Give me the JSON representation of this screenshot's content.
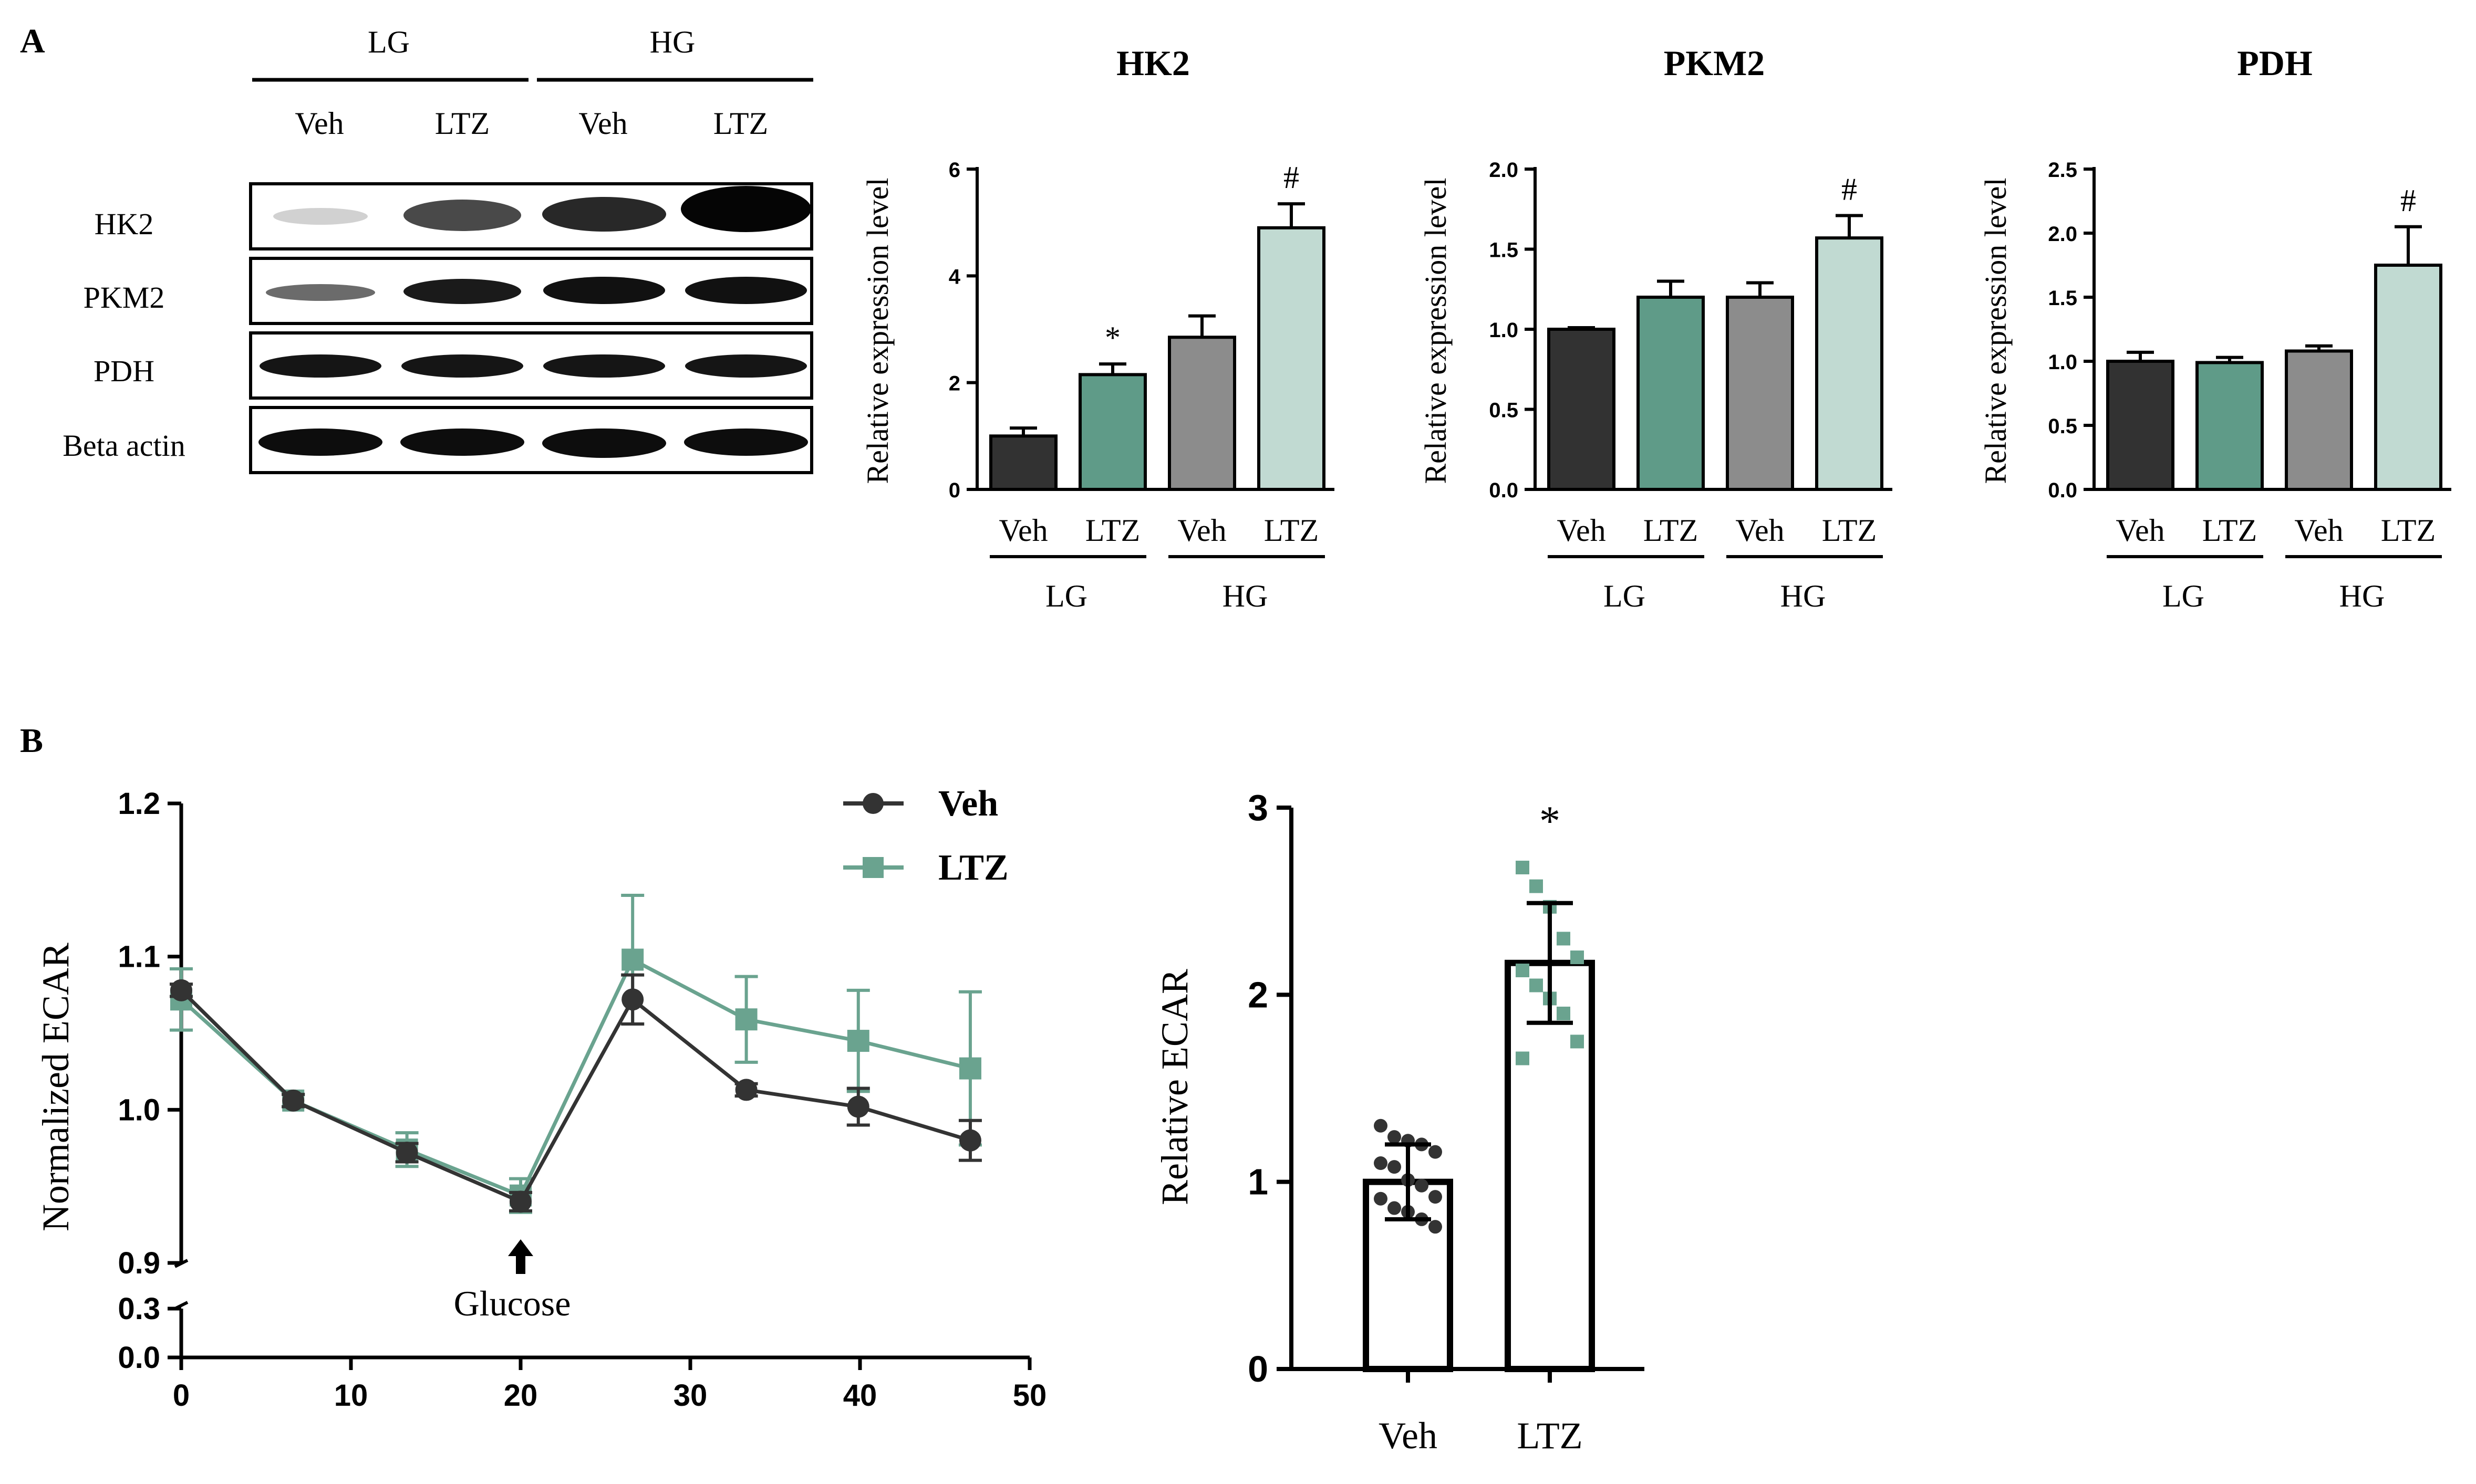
{
  "panel_labels": {
    "a": "A",
    "b": "B"
  },
  "colors": {
    "veh_lg": "#323232",
    "ltz_lg": "#5f9b88",
    "veh_hg": "#8c8c8c",
    "ltz_hg": "#c1dad2",
    "veh_line": "#333333",
    "ltz_line": "#6aa38f"
  },
  "blot": {
    "group_labels": [
      "LG",
      "HG"
    ],
    "lane_labels": [
      "Veh",
      "LTZ",
      "Veh",
      "LTZ"
    ],
    "row_labels": [
      "HK2",
      "PKM2",
      "PDH",
      "Beta actin"
    ]
  },
  "chart_data": [
    {
      "type": "bar",
      "title": "HK2",
      "ylabel": "Relative expression level",
      "categories": [
        "Veh",
        "LTZ",
        "Veh",
        "LTZ"
      ],
      "groups": [
        "LG",
        "HG"
      ],
      "values": [
        1.0,
        2.15,
        2.85,
        4.9
      ],
      "errors": [
        0.15,
        0.2,
        0.4,
        0.45
      ],
      "ylim": [
        0,
        6
      ],
      "yticks": [
        "0",
        "2",
        "4",
        "6"
      ],
      "yticks_values": [
        0,
        2,
        4,
        6
      ],
      "annotations": [
        "",
        "*",
        "",
        "#"
      ]
    },
    {
      "type": "bar",
      "title": "PKM2",
      "ylabel": "Relative expression level",
      "categories": [
        "Veh",
        "LTZ",
        "Veh",
        "LTZ"
      ],
      "groups": [
        "LG",
        "HG"
      ],
      "values": [
        1.0,
        1.2,
        1.2,
        1.57
      ],
      "errors": [
        0.01,
        0.1,
        0.09,
        0.14
      ],
      "ylim": [
        0,
        2.0
      ],
      "yticks": [
        "0.0",
        "0.5",
        "1.0",
        "1.5",
        "2.0"
      ],
      "yticks_values": [
        0,
        0.5,
        1.0,
        1.5,
        2.0
      ],
      "annotations": [
        "",
        "",
        "",
        "#"
      ]
    },
    {
      "type": "bar",
      "title": "PDH",
      "ylabel": "Relative expression level",
      "categories": [
        "Veh",
        "LTZ",
        "Veh",
        "LTZ"
      ],
      "groups": [
        "LG",
        "HG"
      ],
      "values": [
        1.0,
        0.99,
        1.08,
        1.75
      ],
      "errors": [
        0.07,
        0.04,
        0.04,
        0.3
      ],
      "ylim": [
        0,
        2.5
      ],
      "yticks": [
        "0.0",
        "0.5",
        "1.0",
        "1.5",
        "2.0",
        "2.5"
      ],
      "yticks_values": [
        0,
        0.5,
        1.0,
        1.5,
        2.0,
        2.5
      ],
      "annotations": [
        "",
        "",
        "",
        "#"
      ]
    },
    {
      "type": "line",
      "ylabel": "Normalized ECAR",
      "xlim": [
        0,
        50
      ],
      "xticks": [
        "0",
        "10",
        "20",
        "30",
        "40",
        "50"
      ],
      "xticks_values": [
        0,
        10,
        20,
        30,
        40,
        50
      ],
      "yticks_upper": [
        "0.9",
        "1.0",
        "1.1",
        "1.2"
      ],
      "yticks_upper_values": [
        0.9,
        1.0,
        1.1,
        1.2
      ],
      "yticks_lower": [
        "0.0",
        "0.3"
      ],
      "yticks_lower_values": [
        0.0,
        0.3
      ],
      "annotation": "Glucose",
      "annotation_x": 20,
      "series": [
        {
          "name": "Veh",
          "x": [
            0,
            6.6,
            13.3,
            20,
            26.6,
            33.3,
            39.9,
            46.5
          ],
          "y": [
            1.078,
            1.006,
            0.972,
            0.94,
            1.072,
            1.013,
            1.002,
            0.98
          ],
          "err": [
            0.004,
            0.004,
            0.006,
            0.006,
            0.016,
            0.004,
            0.012,
            0.013
          ]
        },
        {
          "name": "LTZ",
          "x": [
            0,
            6.6,
            13.3,
            20,
            26.6,
            33.3,
            39.9,
            46.5
          ],
          "y": [
            1.072,
            1.006,
            0.974,
            0.944,
            1.098,
            1.059,
            1.045,
            1.027
          ],
          "err": [
            0.02,
            0.004,
            0.011,
            0.011,
            0.042,
            0.028,
            0.033,
            0.05
          ]
        }
      ]
    },
    {
      "type": "bar",
      "ylabel": "Relative ECAR",
      "categories": [
        "Veh",
        "LTZ"
      ],
      "values": [
        1.0,
        2.17
      ],
      "errors": [
        0.2,
        0.32
      ],
      "ylim": [
        0,
        3
      ],
      "yticks": [
        "0",
        "1",
        "2",
        "3"
      ],
      "yticks_values": [
        0,
        1,
        2,
        3
      ],
      "annotations": [
        "",
        "*"
      ],
      "points": [
        [
          1.3,
          1.24,
          1.22,
          1.2,
          1.16,
          1.1,
          1.08,
          1.01,
          0.98,
          0.92,
          0.91,
          0.86,
          0.84,
          0.8,
          0.76
        ],
        [
          2.68,
          2.58,
          2.47,
          2.3,
          2.2,
          2.13,
          2.05,
          1.98,
          1.9,
          1.75,
          1.66
        ]
      ]
    }
  ]
}
